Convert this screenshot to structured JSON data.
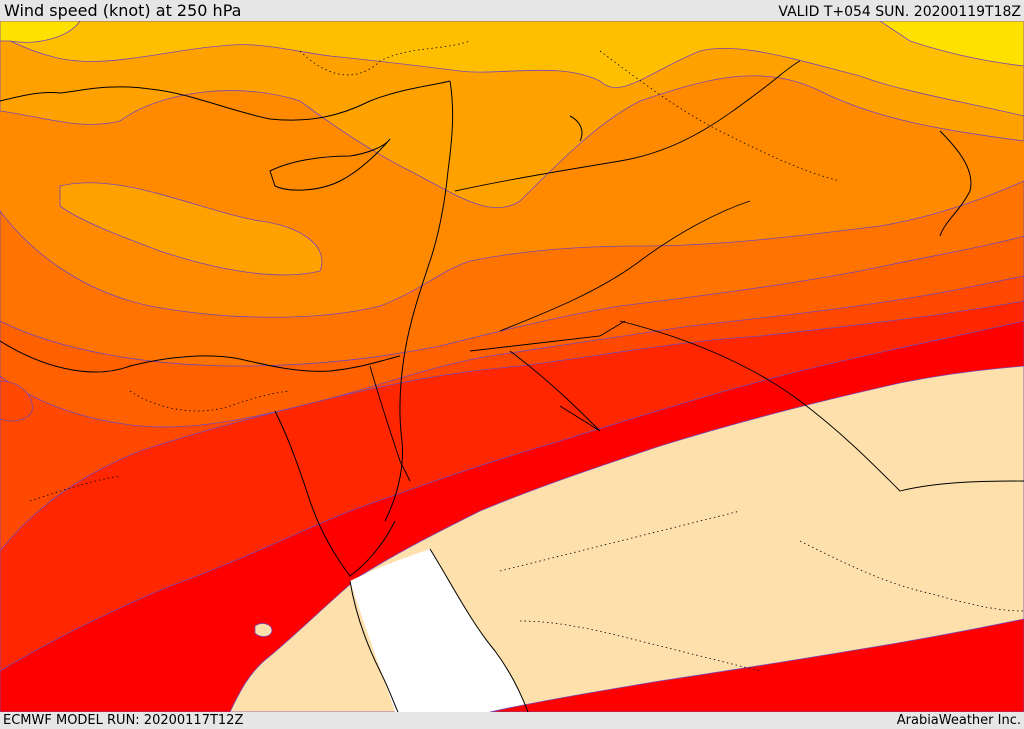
{
  "header": {
    "title": "Wind speed (knot) at 250 hPa",
    "valid": "VALID T+054 SUN. 20200119T18Z"
  },
  "footer": {
    "model_run": "ECMWF MODEL RUN: 20200117T12Z",
    "credit": "ArabiaWeather Inc."
  },
  "colors": {
    "yellow": "#ffe100",
    "light_orange": "#ffbf00",
    "orange_1": "#ffa200",
    "orange_2": "#ff8a00",
    "orange_3": "#ff7400",
    "orange_4": "#ff6000",
    "red_orange": "#ff4800",
    "red_1": "#ff2600",
    "red_2": "#ff0000",
    "calm_fill": "#fde0ac",
    "sea_white": "#ffffff",
    "coast": "#000000",
    "contour": "#7a46b0"
  }
}
